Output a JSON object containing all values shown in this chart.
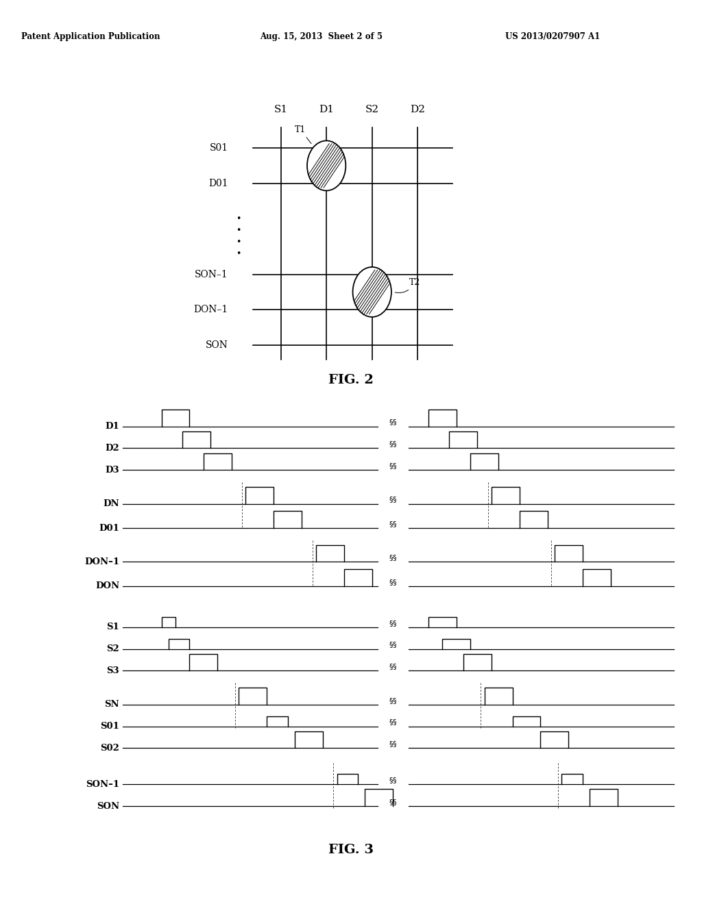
{
  "header_left": "Patent Application Publication",
  "header_mid": "Aug. 15, 2013  Sheet 2 of 5",
  "header_right": "US 2013/0207907 A1",
  "fig2_title": "FIG. 2",
  "fig3_title": "FIG. 3",
  "background": "#ffffff",
  "fig2_col_labels": [
    "S1",
    "D1",
    "S2",
    "D2"
  ],
  "fig2_row_labels": [
    "S01",
    "D01",
    "SON–1",
    "DON–1",
    "SON"
  ],
  "touch1": "T1",
  "touch2": "T2",
  "D_signals": [
    "D1",
    "D2",
    "D3",
    "DN",
    "D01",
    "DON–1",
    "DON"
  ],
  "S_signals": [
    "S1",
    "S2",
    "S3",
    "SN",
    "S01",
    "S02",
    "SON–1",
    "SON"
  ]
}
